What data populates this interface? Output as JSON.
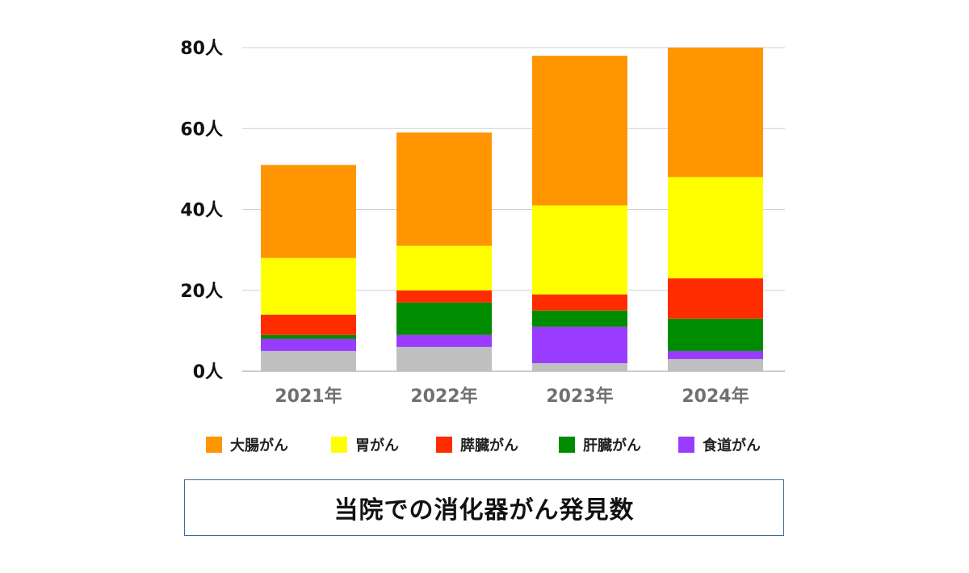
{
  "chart_data": {
    "type": "bar",
    "stacked": true,
    "title": "当院での消化器がん発見数",
    "categories": [
      "2021年",
      "2022年",
      "2023年",
      "2024年"
    ],
    "ylim": [
      0,
      80
    ],
    "yticks": [
      "0人",
      "20人",
      "40人",
      "60人",
      "80人"
    ],
    "grid": true,
    "legend_position": "bottom",
    "series": [
      {
        "name": "",
        "color": "#c0c0c0",
        "values": [
          5,
          6,
          2,
          3
        ]
      },
      {
        "name": "食道がん",
        "color": "#9a3cff",
        "values": [
          3,
          3,
          9,
          2
        ]
      },
      {
        "name": "肝臓がん",
        "color": "#008c00",
        "values": [
          1,
          8,
          4,
          8
        ]
      },
      {
        "name": "膵臓がん",
        "color": "#ff2c00",
        "values": [
          5,
          3,
          4,
          10
        ]
      },
      {
        "name": "胃がん",
        "color": "#ffff00",
        "values": [
          14,
          11,
          22,
          25
        ]
      },
      {
        "name": "大腸がん",
        "color": "#ff9500",
        "values": [
          23,
          28,
          37,
          32
        ]
      }
    ]
  },
  "legend": [
    {
      "label": "大腸がん",
      "color": "#ff9500"
    },
    {
      "label": "胃がん",
      "color": "#ffff00"
    },
    {
      "label": "膵臓がん",
      "color": "#ff2c00"
    },
    {
      "label": "肝臓がん",
      "color": "#008c00"
    },
    {
      "label": "食道がん",
      "color": "#9a3cff"
    }
  ]
}
